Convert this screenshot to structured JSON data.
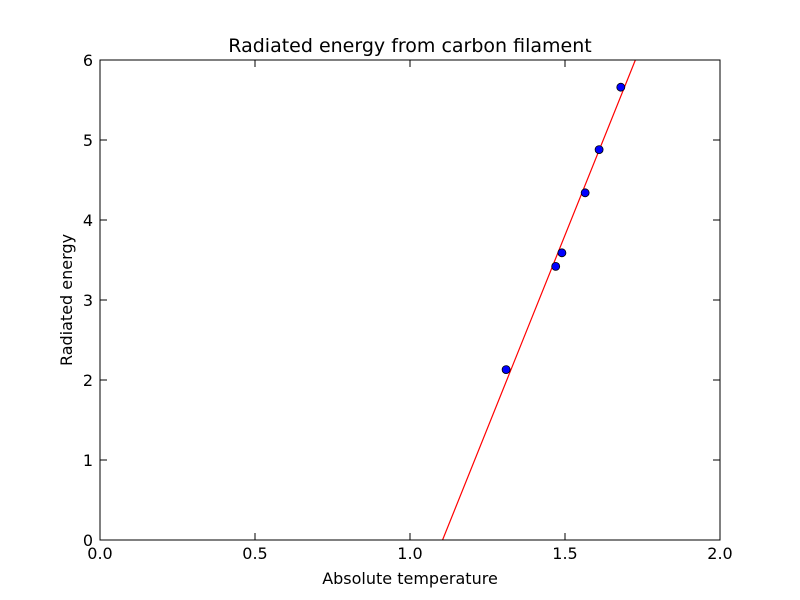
{
  "chart_data": {
    "type": "scatter",
    "title": "Radiated energy from carbon filament",
    "xlabel": "Absolute temperature",
    "ylabel": "Radiated energy",
    "xlim": [
      0.0,
      2.0
    ],
    "ylim": [
      0,
      6
    ],
    "xticks": [
      "0.0",
      "0.5",
      "1.0",
      "1.5",
      "2.0"
    ],
    "yticks": [
      "0",
      "1",
      "2",
      "3",
      "4",
      "5",
      "6"
    ],
    "grid": false,
    "legend": "none",
    "series": [
      {
        "kind": "points",
        "color": "#0000ff",
        "x": [
          1.31,
          1.47,
          1.49,
          1.565,
          1.61,
          1.68
        ],
        "y": [
          2.13,
          3.42,
          3.59,
          4.34,
          4.88,
          5.66
        ]
      },
      {
        "kind": "fit-line",
        "color": "#ff0000",
        "x": [
          1.105,
          1.727
        ],
        "y": [
          0,
          6
        ]
      }
    ]
  }
}
